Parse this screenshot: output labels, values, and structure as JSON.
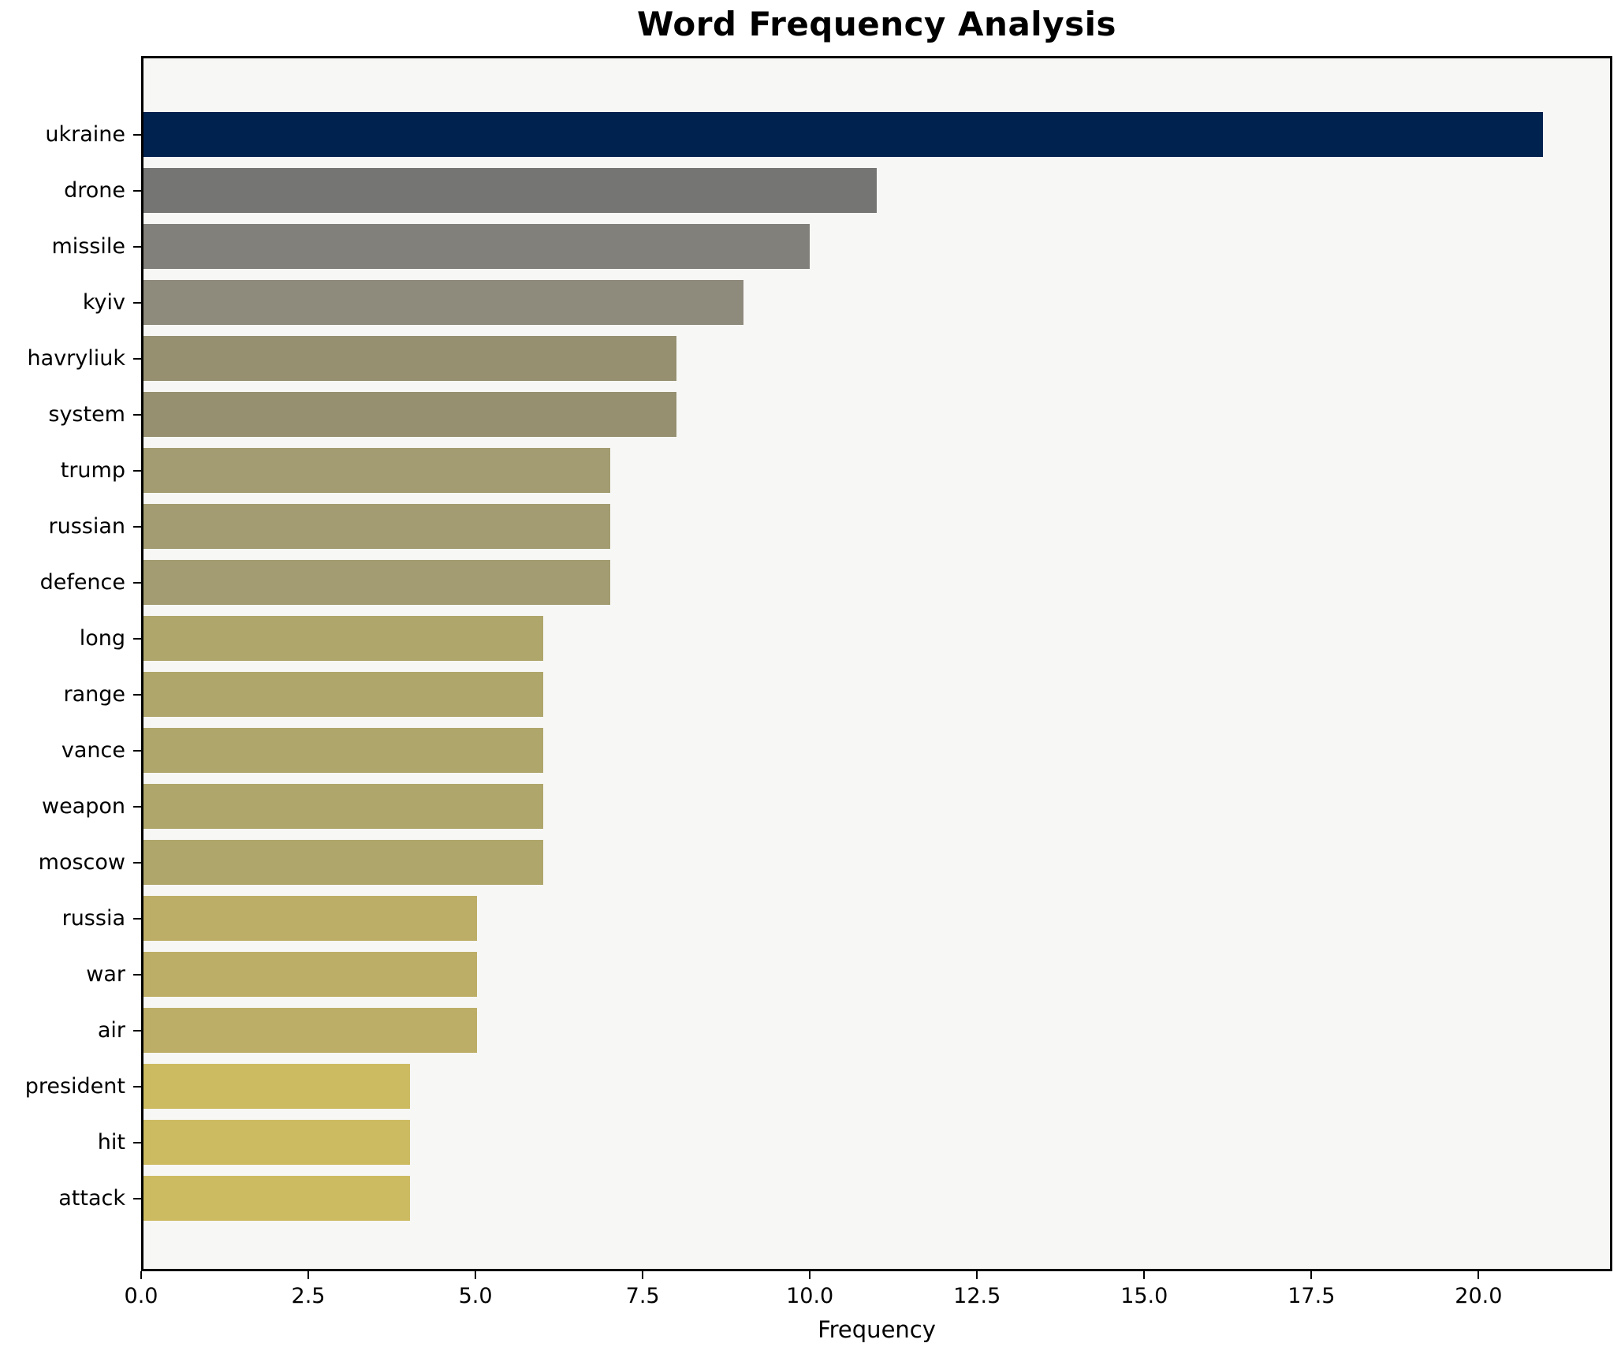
{
  "figure": {
    "title": "Word Frequency Analysis",
    "xlabel": "Frequency"
  },
  "chart_data": {
    "type": "bar",
    "orientation": "horizontal",
    "title": "Word Frequency Analysis",
    "xlabel": "Frequency",
    "ylabel": "",
    "categories": [
      "ukraine",
      "drone",
      "missile",
      "kyiv",
      "havryliuk",
      "system",
      "trump",
      "russian",
      "defence",
      "long",
      "range",
      "vance",
      "weapon",
      "moscow",
      "russia",
      "war",
      "air",
      "president",
      "hit",
      "attack"
    ],
    "values": [
      21,
      11,
      10,
      9,
      8,
      8,
      7,
      7,
      7,
      6,
      6,
      6,
      6,
      6,
      5,
      5,
      5,
      4,
      4,
      4
    ],
    "bar_colors": [
      "#00224f",
      "#757674",
      "#82807a",
      "#8e8a7c",
      "#969071",
      "#969071",
      "#a39c72",
      "#a39c72",
      "#a39c72",
      "#afa66c",
      "#afa66c",
      "#afa66c",
      "#afa66c",
      "#afa66c",
      "#bdae67",
      "#bdae67",
      "#bdae67",
      "#cdbb62",
      "#cdbb62",
      "#cdbb62"
    ],
    "xlim": [
      0,
      22
    ],
    "xticks": [
      0,
      2.5,
      5,
      7.5,
      10,
      12.5,
      15,
      17.5,
      20
    ],
    "xtick_labels": [
      "0.0",
      "2.5",
      "5.0",
      "7.5",
      "10.0",
      "12.5",
      "15.0",
      "17.5",
      "20.0"
    ],
    "grid": false,
    "legend": null,
    "plot_bg": "#f7f7f5",
    "figure_bg": "#ffffff",
    "spine_color": "#000000"
  }
}
